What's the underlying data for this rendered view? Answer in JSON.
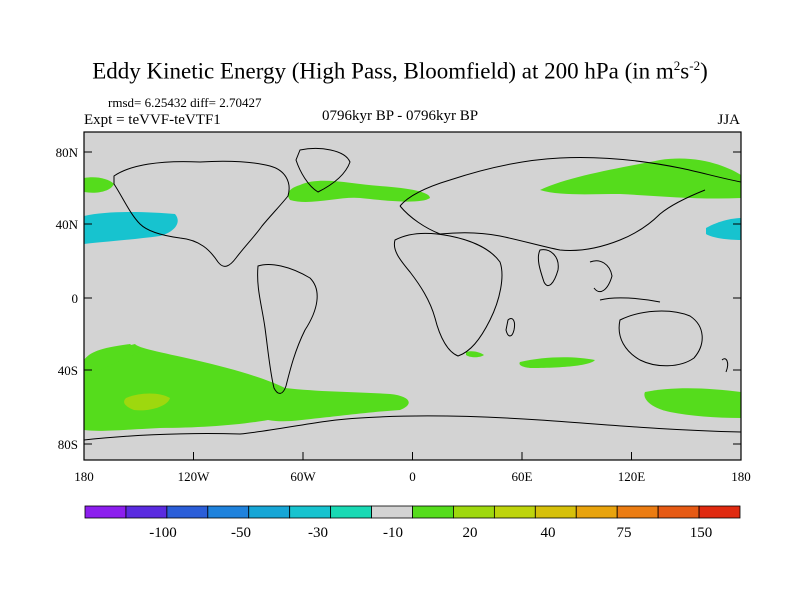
{
  "title": {
    "main": "Eddy Kinetic Energy (High Pass, Bloomfield) at 200 hPa (in m",
    "sup1": "2",
    "mid": "s",
    "sup2": "-2",
    "end": ")"
  },
  "stats": "rmsd= 6.25432 diff= 2.70427",
  "experiment": "Expt = teVVF-teVTF1",
  "period": "0796kyr BP - 0796kyr BP",
  "season": "JJA",
  "map": {
    "lat_labels": [
      "80N",
      "40N",
      "0",
      "40S",
      "80S"
    ],
    "lon_labels": [
      "180",
      "120W",
      "60W",
      "0",
      "60E",
      "120E",
      "180"
    ],
    "background_color": "#d3d3d3"
  },
  "colorbar": {
    "colors": [
      "#8c1eee",
      "#5a2be0",
      "#2b5ed8",
      "#1f82dc",
      "#17a6d6",
      "#17c3cf",
      "#19d9b4",
      "#d3d3d3",
      "#55dc1c",
      "#9ed80e",
      "#bed40c",
      "#d6c00a",
      "#e8a30d",
      "#eb7c12",
      "#e65a14",
      "#e02a10"
    ],
    "labels": [
      "-100",
      "-50",
      "-30",
      "-10",
      "20",
      "40",
      "75",
      "150"
    ]
  },
  "regions": {
    "green": "#55dc1c",
    "cyan": "#17c3cf",
    "light_green": "#9ed80e"
  }
}
